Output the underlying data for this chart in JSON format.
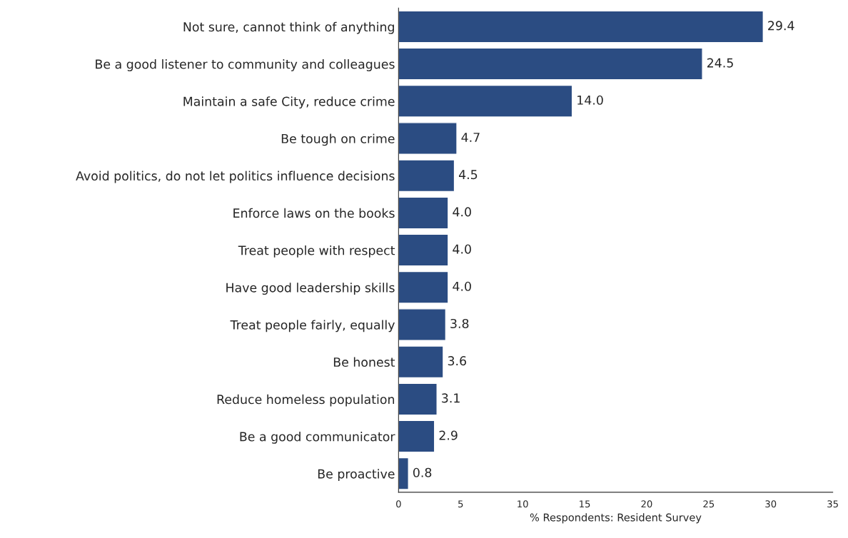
{
  "chart_data": {
    "type": "bar",
    "orientation": "horizontal",
    "xlabel": "% Respondents: Resident Survey",
    "categories": [
      "Not sure, cannot think of anything",
      "Be a good listener to community and colleagues",
      "Maintain a safe City, reduce crime",
      "Be tough on crime",
      "Avoid politics, do not let politics influence decisions",
      "Enforce laws on the books",
      "Treat people with respect",
      "Have good leadership skills",
      "Treat people fairly, equally",
      "Be honest",
      "Reduce homeless population",
      "Be a good communicator",
      "Be proactive"
    ],
    "values": [
      29.4,
      24.5,
      14.0,
      4.7,
      4.5,
      4.0,
      4.0,
      4.0,
      3.8,
      3.6,
      3.1,
      2.9,
      0.8
    ],
    "value_labels": [
      "29.4",
      "24.5",
      "14.0",
      "4.7",
      "4.5",
      "4.0",
      "4.0",
      "4.0",
      "3.8",
      "3.6",
      "3.1",
      "2.9",
      "0.8"
    ],
    "color": "#2b4c82",
    "xlim": [
      0,
      35
    ],
    "xticks": [
      0,
      5,
      10,
      15,
      20,
      25,
      30,
      35
    ],
    "grid": false
  }
}
